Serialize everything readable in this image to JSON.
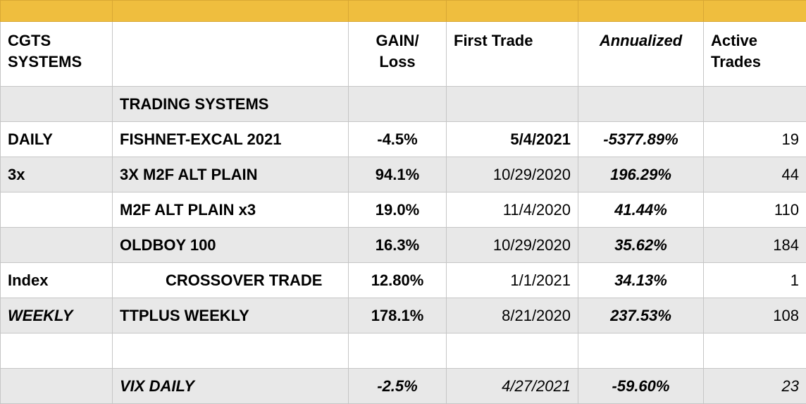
{
  "header": {
    "col1": "CGTS\nSYSTEMS",
    "col2": "",
    "col3": "GAIN/\nLoss",
    "col4": "First Trade",
    "col5": "Annualized",
    "col6": "Active\nTrades"
  },
  "section_title": "TRADING SYSTEMS",
  "rows": [
    {
      "group": "DAILY",
      "system": "FISHNET-EXCAL 2021",
      "gain": "-4.5%",
      "first_trade": "5/4/2021",
      "annualized": "-5377.89%",
      "active": "19"
    },
    {
      "group": "3x",
      "system": "3X M2F ALT PLAIN",
      "gain": "94.1%",
      "first_trade": "10/29/2020",
      "annualized": "196.29%",
      "active": "44"
    },
    {
      "group": "",
      "system": "M2F ALT PLAIN x3",
      "gain": "19.0%",
      "first_trade": "11/4/2020",
      "annualized": "41.44%",
      "active": "110"
    },
    {
      "group": "",
      "system": "OLDBOY 100",
      "gain": "16.3%",
      "first_trade": "10/29/2020",
      "annualized": "35.62%",
      "active": "184"
    },
    {
      "group": "Index",
      "system": "CROSSOVER TRADE",
      "gain": "12.80%",
      "first_trade": "1/1/2021",
      "annualized": "34.13%",
      "active": "1"
    },
    {
      "group": "WEEKLY",
      "system": "TTPLUS WEEKLY",
      "gain": "178.1%",
      "first_trade": "8/21/2020",
      "annualized": "237.53%",
      "active": "108"
    },
    {
      "group": "",
      "system": "",
      "gain": "",
      "first_trade": "",
      "annualized": "",
      "active": ""
    },
    {
      "group": "",
      "system": "VIX DAILY",
      "gain": "-2.5%",
      "first_trade": "4/27/2021",
      "annualized": "-59.60%",
      "active": "23"
    }
  ],
  "colors": {
    "header_band": "#efbe3e",
    "shade": "#e8e8e8",
    "grid": "#c6c6c6"
  }
}
